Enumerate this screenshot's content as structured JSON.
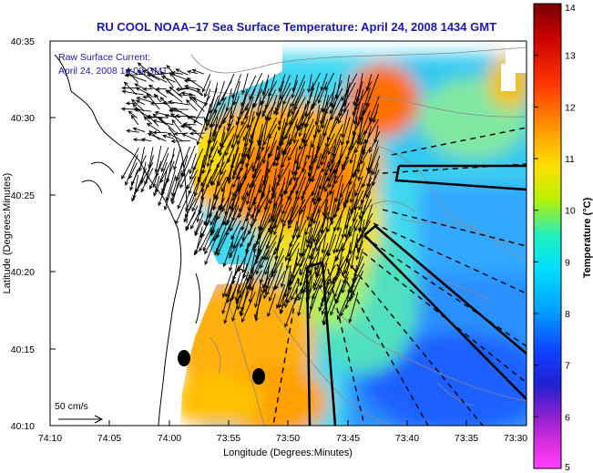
{
  "title": "RU COOL  NOAA–17  Sea Surface Temperature:  April 24, 2008 1434 GMT",
  "inset": {
    "line1": "Raw Surface Current:",
    "line2": "April 24, 2008 14:00 GMT"
  },
  "axes": {
    "xlabel": "Longitude (Degrees:Minutes)",
    "ylabel": "Latitude (Degrees:Minutes)",
    "x_ticks": [
      "74:10",
      "74:05",
      "74:00",
      "73:55",
      "73:50",
      "73:45",
      "73:40",
      "73:35",
      "73:30"
    ],
    "y_ticks": [
      "40:35",
      "40:30",
      "40:25",
      "40:20",
      "40:15",
      "40:10"
    ]
  },
  "colorbar": {
    "label": "Temperature (°C)",
    "ticks": [
      "14",
      "13",
      "12",
      "11",
      "10",
      "9",
      "8",
      "7",
      "6",
      "5"
    ],
    "min": 5,
    "max": 14
  },
  "scale_arrow": {
    "label": "50 cm/s"
  },
  "colors": {
    "title": "#1a1ab0",
    "inset_text": "#1a1ab0",
    "land": "#ffffff",
    "coast": "#000000",
    "arrows": "#000000"
  }
}
